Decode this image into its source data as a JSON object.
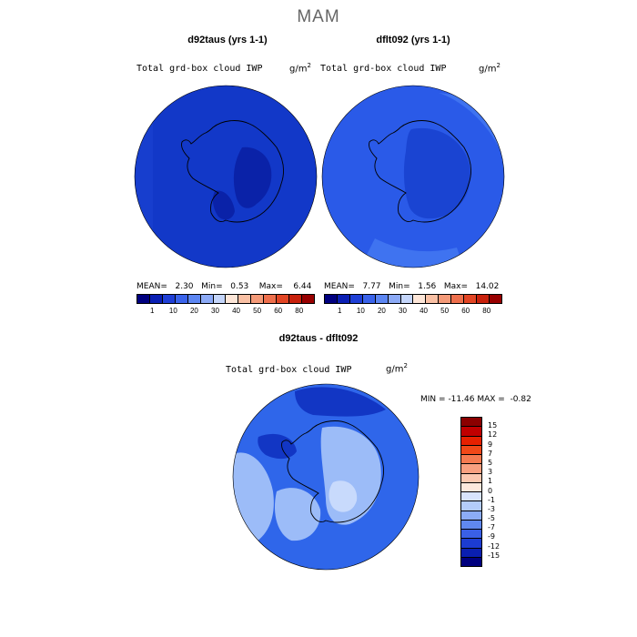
{
  "figure": {
    "season": "MAM"
  },
  "panels": [
    {
      "title": "d92taus (yrs 1-1)",
      "variable": "Total grd-box cloud IWP",
      "units_base": "g/m",
      "units_exp": "2",
      "mean_label": "MEAN=",
      "mean": "2.30",
      "min_label": "Min=",
      "min": "0.53",
      "max_label": "Max=",
      "max": "6.44"
    },
    {
      "title": "dflt092 (yrs 1-1)",
      "variable": "Total grd-box cloud IWP",
      "units_base": "g/m",
      "units_exp": "2",
      "mean_label": "MEAN=",
      "mean": "7.77",
      "min_label": "Min=",
      "min": "1.56",
      "max_label": "Max=",
      "max": "14.02"
    },
    {
      "title": "d92taus - dflt092",
      "variable": "Total grd-box cloud IWP",
      "units_base": "g/m",
      "units_exp": "2",
      "min_label": "MIN =",
      "min": "-11.46",
      "max_label": "MAX =",
      "max": "-0.82"
    }
  ],
  "colorbar_top": {
    "colors": [
      "#00007f",
      "#0a1fb4",
      "#1f3fd6",
      "#3a63ea",
      "#5c86f2",
      "#8caaf6",
      "#c4d5fa",
      "#fde6d8",
      "#f9c0a4",
      "#f49a78",
      "#ee6f4c",
      "#e24524",
      "#c8210c",
      "#980000"
    ],
    "labels": [
      "1",
      "10",
      "20",
      "30",
      "40",
      "50",
      "60",
      "80"
    ]
  },
  "colorbar_diff": {
    "colors": [
      "#8b0000",
      "#c00000",
      "#e62000",
      "#f04818",
      "#f47a50",
      "#f8a080",
      "#fbc8b0",
      "#fde8dc",
      "#d8e4fc",
      "#b4ccfa",
      "#8cacf6",
      "#6088f0",
      "#3a60e6",
      "#1c3cd2",
      "#0a1fb0",
      "#00007f"
    ],
    "labels": [
      "15",
      "12",
      "9",
      "7",
      "5",
      "3",
      "1",
      "0",
      "-1",
      "-3",
      "-5",
      "-7",
      "-9",
      "-12",
      "-15"
    ]
  },
  "map_colors": {
    "ocean_p1": "#1238c8",
    "land_p1_dark": "#0a22a8",
    "ocean_p2": "#2a5ae8",
    "ocean_p2_light": "#3f73f0",
    "land_p2": "#1a44d2",
    "diff_base": "#2f66ea",
    "diff_light": "#9cbcf8",
    "diff_lighter": "#c8dafc",
    "diff_dark": "#1236c4"
  }
}
